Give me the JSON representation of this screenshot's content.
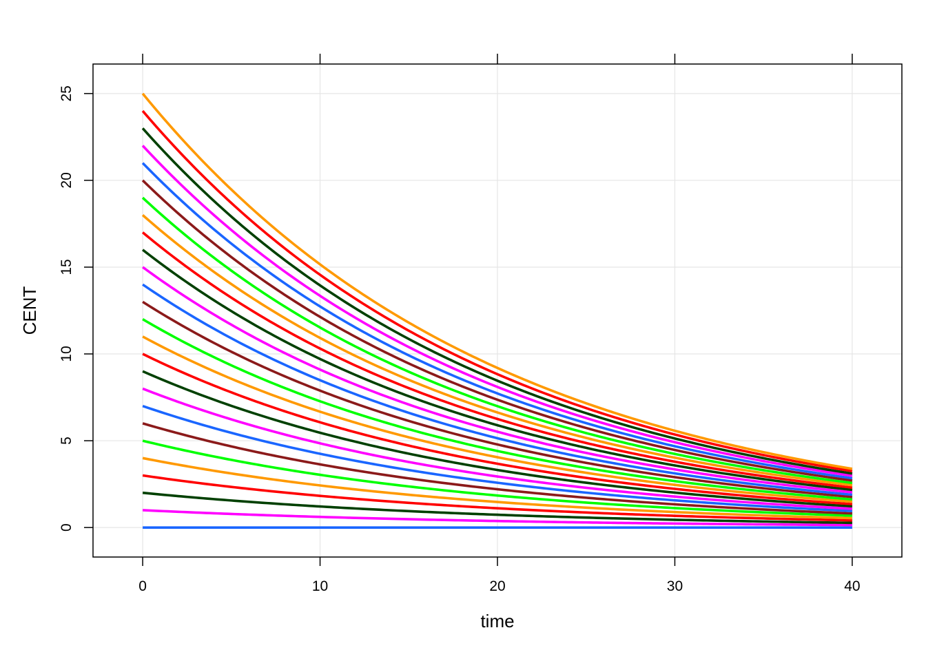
{
  "chart_data": {
    "type": "line",
    "title": "",
    "xlabel": "time",
    "ylabel": "CENT",
    "xlim": [
      -2.8,
      42.8
    ],
    "ylim": [
      -1.7,
      26.7
    ],
    "x_ticks": [
      0,
      10,
      20,
      30,
      40
    ],
    "y_ticks": [
      0,
      5,
      10,
      15,
      20,
      25
    ],
    "x_tick_labels": [
      "0",
      "10",
      "20",
      "30",
      "40"
    ],
    "y_tick_labels": [
      "0",
      "5",
      "10",
      "15",
      "20",
      "25"
    ],
    "grid": true,
    "legend": "none",
    "x_range": [
      0,
      40
    ],
    "curve_form": "y = y0 * exp(-0.05 * time)",
    "series": [
      {
        "y0": 0,
        "end_value": 0.0,
        "color": "#1a66ff"
      },
      {
        "y0": 1,
        "end_value": 0.14,
        "color": "#ff00ff"
      },
      {
        "y0": 2,
        "end_value": 0.27,
        "color": "#004000"
      },
      {
        "y0": 3,
        "end_value": 0.41,
        "color": "#ff0000"
      },
      {
        "y0": 4,
        "end_value": 0.54,
        "color": "#ff9900"
      },
      {
        "y0": 5,
        "end_value": 0.68,
        "color": "#00ff00"
      },
      {
        "y0": 6,
        "end_value": 0.81,
        "color": "#8b1a1a"
      },
      {
        "y0": 7,
        "end_value": 0.95,
        "color": "#1a66ff"
      },
      {
        "y0": 8,
        "end_value": 1.08,
        "color": "#ff00ff"
      },
      {
        "y0": 9,
        "end_value": 1.22,
        "color": "#004000"
      },
      {
        "y0": 10,
        "end_value": 1.35,
        "color": "#ff0000"
      },
      {
        "y0": 11,
        "end_value": 1.49,
        "color": "#ff9900"
      },
      {
        "y0": 12,
        "end_value": 1.62,
        "color": "#00ff00"
      },
      {
        "y0": 13,
        "end_value": 1.76,
        "color": "#8b1a1a"
      },
      {
        "y0": 14,
        "end_value": 1.89,
        "color": "#1a66ff"
      },
      {
        "y0": 15,
        "end_value": 2.03,
        "color": "#ff00ff"
      },
      {
        "y0": 16,
        "end_value": 2.17,
        "color": "#004000"
      },
      {
        "y0": 17,
        "end_value": 2.3,
        "color": "#ff0000"
      },
      {
        "y0": 18,
        "end_value": 2.44,
        "color": "#ff9900"
      },
      {
        "y0": 19,
        "end_value": 2.57,
        "color": "#00ff00"
      },
      {
        "y0": 20,
        "end_value": 2.71,
        "color": "#8b1a1a"
      },
      {
        "y0": 21,
        "end_value": 2.84,
        "color": "#1a66ff"
      },
      {
        "y0": 22,
        "end_value": 2.98,
        "color": "#ff00ff"
      },
      {
        "y0": 23,
        "end_value": 3.11,
        "color": "#004000"
      },
      {
        "y0": 24,
        "end_value": 3.25,
        "color": "#ff0000"
      },
      {
        "y0": 25,
        "end_value": 3.38,
        "color": "#ff9900"
      }
    ],
    "colors": {
      "frame": "#000000",
      "grid": "#e5e5e5",
      "background": "#ffffff"
    }
  }
}
